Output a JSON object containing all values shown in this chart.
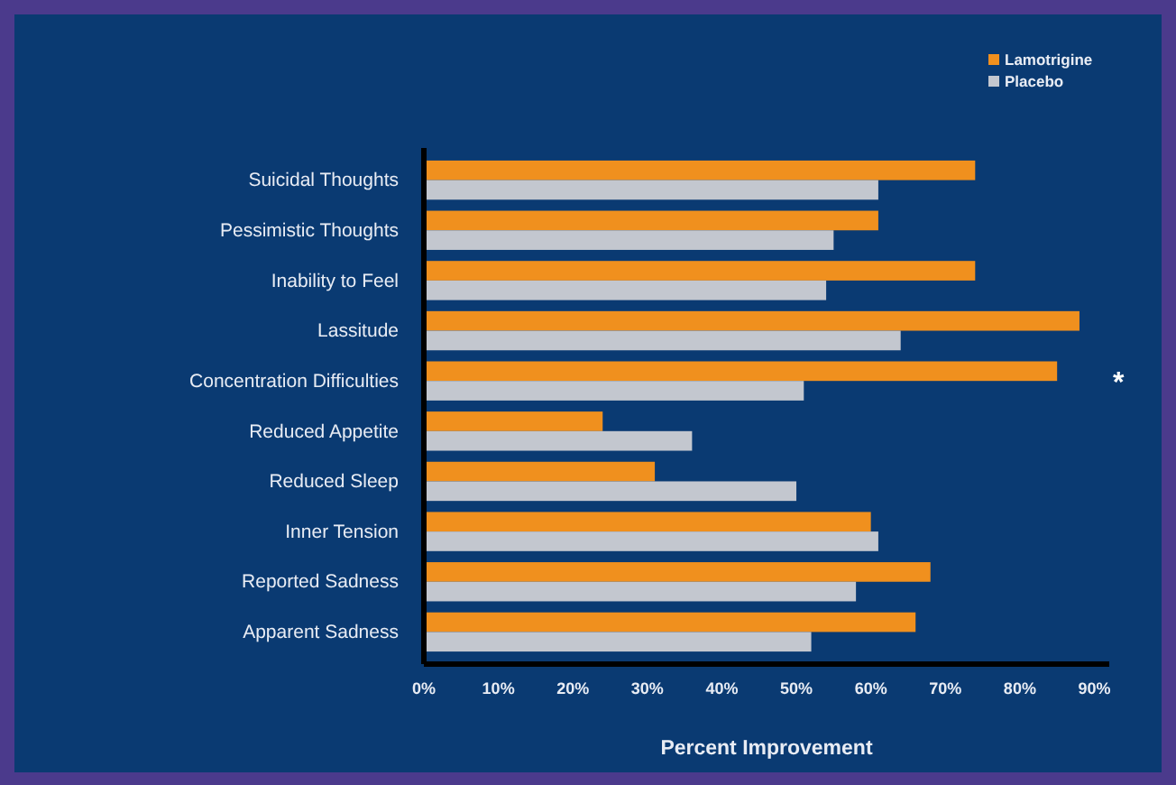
{
  "chart_data": {
    "type": "bar",
    "orientation": "horizontal",
    "xlabel": "Percent Improvement",
    "categories": [
      "Suicidal Thoughts",
      "Pessimistic Thoughts",
      "Inability to Feel",
      "Lassitude",
      "Concentration Difficulties",
      "Reduced Appetite",
      "Reduced Sleep",
      "Inner Tension",
      "Reported Sadness",
      "Apparent Sadness"
    ],
    "series": [
      {
        "name": "Lamotrigine",
        "color": "#f0901e",
        "values": [
          74,
          61,
          74,
          88,
          85,
          24,
          31,
          60,
          68,
          66
        ]
      },
      {
        "name": "Placebo",
        "color": "#c3c7cf",
        "values": [
          61,
          55,
          54,
          64,
          51,
          36,
          50,
          61,
          58,
          52
        ]
      }
    ],
    "xlim": [
      0,
      92
    ],
    "xticks": [
      {
        "value": 0,
        "label": "0%"
      },
      {
        "value": 10,
        "label": "10%"
      },
      {
        "value": 20,
        "label": "20%"
      },
      {
        "value": 30,
        "label": "30%"
      },
      {
        "value": 40,
        "label": "40%"
      },
      {
        "value": 50,
        "label": "50%"
      },
      {
        "value": 60,
        "label": "60%"
      },
      {
        "value": 70,
        "label": "70%"
      },
      {
        "value": 80,
        "label": "80%"
      },
      {
        "value": 90,
        "label": "90%"
      }
    ],
    "annotations": [
      {
        "text": "*",
        "x": 85,
        "y": "Concentration Difficulties"
      }
    ],
    "legend": "top right",
    "grid": false
  }
}
